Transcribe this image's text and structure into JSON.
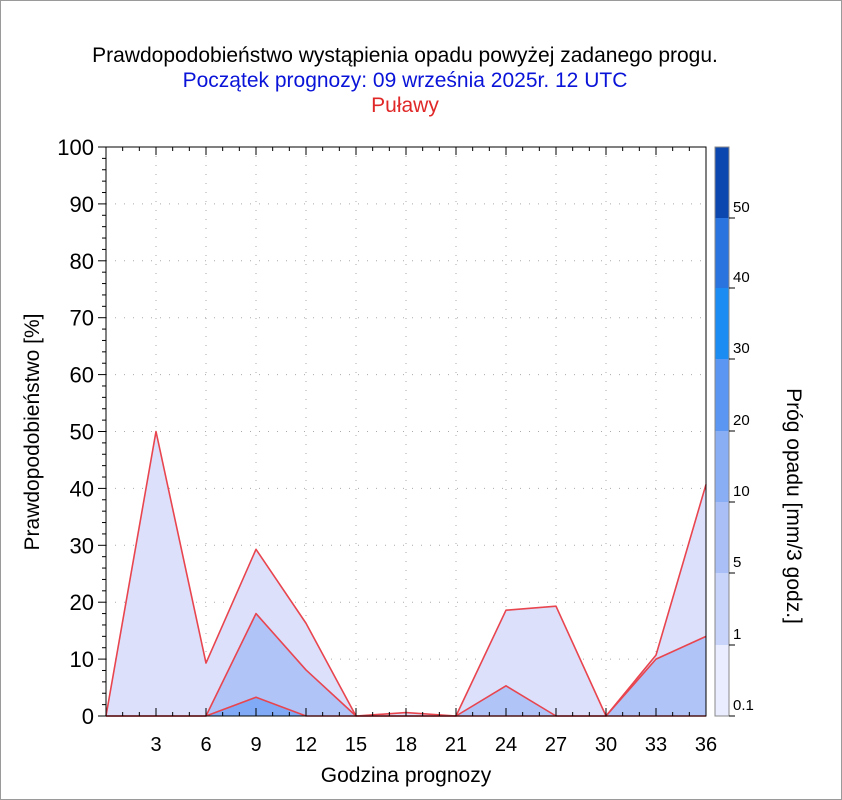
{
  "title": "Prawdopodobieństwo wystąpienia opadu powyżej zadanego progu.",
  "subtitle": "Początek prognozy: 09 września 2025r. 12 UTC",
  "location": "Puławy",
  "colors": {
    "title": "#000000",
    "subtitle": "#0a14d8",
    "location": "#e02828",
    "series_line": "#e8454f",
    "grid": "#aaaaaa"
  },
  "chart_data": {
    "type": "area",
    "xlabel": "Godzina prognozy",
    "ylabel": "Prawdopodobieństwo [%]",
    "xlim": [
      0,
      36
    ],
    "ylim": [
      0,
      100
    ],
    "x_ticks": [
      3,
      6,
      9,
      12,
      15,
      18,
      21,
      24,
      27,
      30,
      33,
      36
    ],
    "y_ticks": [
      0,
      10,
      20,
      30,
      40,
      50,
      60,
      70,
      80,
      90,
      100
    ],
    "grid": true,
    "x": [
      0,
      3,
      6,
      9,
      12,
      15,
      18,
      21,
      24,
      27,
      30,
      33,
      36
    ],
    "series": [
      {
        "threshold": "0.1",
        "color": "#dce0fb",
        "values": [
          0,
          50,
          9.3,
          29.3,
          16.3,
          0,
          0.6,
          0,
          18.6,
          19.3,
          0,
          10.7,
          40.7
        ]
      },
      {
        "threshold": "1",
        "color": "#b0c4f7",
        "values": [
          0,
          0,
          0,
          18,
          8.1,
          0,
          0,
          0,
          5.3,
          0,
          0,
          10,
          14
        ]
      },
      {
        "threshold": "5",
        "color": "#80aaf5",
        "values": [
          0,
          0,
          0,
          3.3,
          0,
          0,
          0,
          0,
          0,
          0,
          0,
          0,
          0
        ]
      }
    ],
    "colorbar": {
      "label": "Próg opadu [mm/3 godz.]",
      "labels": [
        "0.1",
        "1",
        "5",
        "10",
        "20",
        "30",
        "40",
        "50"
      ],
      "colors": [
        "#eaedff",
        "#c8d4f9",
        "#a9bff5",
        "#8aaef4",
        "#5a96f2",
        "#1a8cf2",
        "#2a74e0",
        "#1758cf",
        "#0c47b0"
      ]
    }
  }
}
